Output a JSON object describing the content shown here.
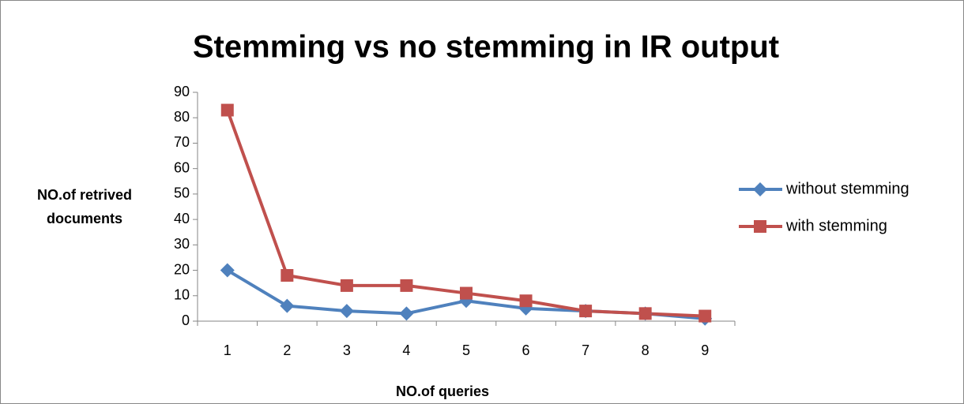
{
  "chart_data": {
    "type": "line",
    "title": "Stemming vs no stemming in IR output",
    "x_label": "NO.of queries",
    "y_label": "NO.of retrived documents",
    "categories": [
      "1",
      "2",
      "3",
      "4",
      "5",
      "6",
      "7",
      "8",
      "9"
    ],
    "series": [
      {
        "name": "without stemming",
        "color": "#4f81bd",
        "marker": "diamond",
        "values": [
          20,
          6,
          4,
          3,
          8,
          5,
          4,
          3,
          1
        ]
      },
      {
        "name": "with stemming",
        "color": "#c0504d",
        "marker": "square",
        "values": [
          83,
          18,
          14,
          14,
          11,
          8,
          4,
          3,
          2
        ]
      }
    ],
    "ylim": [
      0,
      90
    ],
    "yticks": [
      0,
      10,
      20,
      30,
      40,
      50,
      60,
      70,
      80,
      90
    ],
    "grid": false,
    "legend": "right"
  }
}
